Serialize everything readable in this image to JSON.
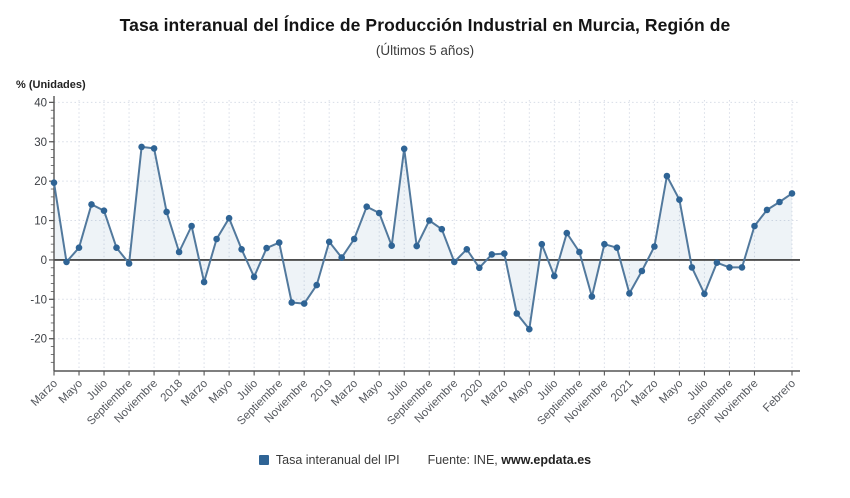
{
  "header": {
    "title": "Tasa interanual del Índice de Producción Industrial en Murcia, Región de",
    "subtitle": "(Últimos 5 años)"
  },
  "axis_unit_label": "% (Unidades)",
  "legend": {
    "series_label": "Tasa interanual del IPI"
  },
  "source": {
    "prefix": "Fuente: INE, ",
    "site": "www.epdata.es"
  },
  "colors": {
    "line": "#52799d",
    "point": "#2f6495",
    "area_fill": "rgba(93,134,176,0.10)",
    "zero_line": "#4d4d4d",
    "grid": "#d8dde7",
    "axis": "#555555",
    "y_tick_label": "#3c3f44",
    "x_tick_label": "#55585e"
  },
  "chart_data": {
    "type": "line",
    "title": "Tasa interanual del Índice de Producción Industrial en Murcia, Región de",
    "subtitle": "(Últimos 5 años)",
    "ylabel": "% (Unidades)",
    "grid": true,
    "legend_position": "bottom",
    "ylim": [
      -28.2,
      40.6
    ],
    "yticks": [
      40,
      30,
      20,
      10,
      0,
      -10,
      -20
    ],
    "x_tick_labels": [
      "Marzo",
      "Mayo",
      "Julio",
      "Septiembre",
      "Noviembre",
      "2018",
      "Marzo",
      "Mayo",
      "Julio",
      "Septiembre",
      "Noviembre",
      "2019",
      "Marzo",
      "Mayo",
      "Julio",
      "Septiembre",
      "Noviembre",
      "2020",
      "Marzo",
      "Mayo",
      "Julio",
      "Septiembre",
      "Noviembre",
      "2021",
      "Marzo",
      "Mayo",
      "Julio",
      "Septiembre",
      "Noviembre",
      "Febrero"
    ],
    "x_tick_indices": [
      0,
      2,
      4,
      6,
      8,
      10,
      12,
      14,
      16,
      18,
      20,
      22,
      24,
      26,
      28,
      30,
      32,
      34,
      36,
      38,
      40,
      42,
      44,
      46,
      48,
      50,
      52,
      54,
      56,
      59
    ],
    "categories": [
      "Mar 2017",
      "Abr 2017",
      "May 2017",
      "Jun 2017",
      "Jul 2017",
      "Ago 2017",
      "Sep 2017",
      "Oct 2017",
      "Nov 2017",
      "Dic 2017",
      "Ene 2018",
      "Feb 2018",
      "Mar 2018",
      "Abr 2018",
      "May 2018",
      "Jun 2018",
      "Jul 2018",
      "Ago 2018",
      "Sep 2018",
      "Oct 2018",
      "Nov 2018",
      "Dic 2018",
      "Ene 2019",
      "Feb 2019",
      "Mar 2019",
      "Abr 2019",
      "May 2019",
      "Jun 2019",
      "Jul 2019",
      "Ago 2019",
      "Sep 2019",
      "Oct 2019",
      "Nov 2019",
      "Dic 2019",
      "Ene 2020",
      "Feb 2020",
      "Mar 2020",
      "Abr 2020",
      "May 2020",
      "Jun 2020",
      "Jul 2020",
      "Ago 2020",
      "Sep 2020",
      "Oct 2020",
      "Nov 2020",
      "Dic 2020",
      "Ene 2021",
      "Feb 2021",
      "Mar 2021",
      "Abr 2021",
      "May 2021",
      "Jun 2021",
      "Jul 2021",
      "Ago 2021",
      "Sep 2021",
      "Oct 2021",
      "Nov 2021",
      "Dic 2021",
      "Ene 2022",
      "Feb 2022"
    ],
    "series": [
      {
        "name": "Tasa interanual del IPI",
        "values": [
          19.6,
          -0.5,
          3.1,
          14.1,
          12.5,
          3.1,
          -0.9,
          28.7,
          28.3,
          12.2,
          2.0,
          8.6,
          -5.6,
          5.3,
          10.6,
          2.7,
          -4.3,
          3.0,
          4.4,
          -10.8,
          -11.1,
          -6.4,
          4.6,
          0.6,
          5.3,
          13.5,
          11.9,
          3.6,
          28.2,
          3.5,
          10.0,
          7.8,
          -0.5,
          2.7,
          -2.0,
          1.4,
          1.6,
          -13.6,
          -17.6,
          4.0,
          -4.1,
          6.8,
          2.0,
          -9.3,
          4.0,
          3.1,
          -8.5,
          -2.8,
          3.4,
          21.3,
          15.3,
          -1.9,
          -8.6,
          -0.7,
          -1.9,
          -1.9,
          8.6,
          12.7,
          14.7,
          16.9
        ]
      }
    ]
  }
}
